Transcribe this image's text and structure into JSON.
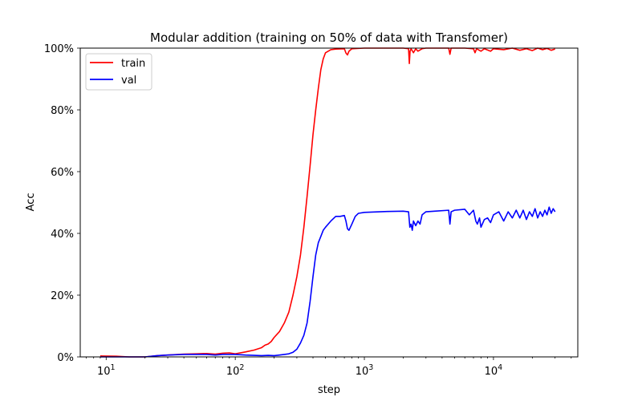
{
  "chart_data": {
    "type": "line",
    "title": "Modular addition (training on 50% of data with Transfomer)",
    "xlabel": "step",
    "ylabel": "Acc",
    "xscale": "log",
    "xlim": [
      6.3,
      45000
    ],
    "ylim": [
      0,
      1
    ],
    "x_ticks": [
      {
        "base": "10",
        "exp": "1",
        "value": 10
      },
      {
        "base": "10",
        "exp": "2",
        "value": 100
      },
      {
        "base": "10",
        "exp": "3",
        "value": 1000
      },
      {
        "base": "10",
        "exp": "4",
        "value": 10000
      }
    ],
    "y_ticks": [
      {
        "label": "0%",
        "value": 0
      },
      {
        "label": "20%",
        "value": 0.2
      },
      {
        "label": "40%",
        "value": 0.4
      },
      {
        "label": "60%",
        "value": 0.6
      },
      {
        "label": "80%",
        "value": 0.8
      },
      {
        "label": "100%",
        "value": 1.0
      }
    ],
    "grid": false,
    "legend_position": "top-left",
    "series": [
      {
        "name": "train",
        "color": "#ff0000",
        "points": [
          [
            9,
            0.003
          ],
          [
            12,
            0.002
          ],
          [
            15,
            0.0
          ],
          [
            20,
            0.0
          ],
          [
            25,
            0.004
          ],
          [
            30,
            0.006
          ],
          [
            40,
            0.009
          ],
          [
            50,
            0.01
          ],
          [
            60,
            0.011
          ],
          [
            70,
            0.009
          ],
          [
            80,
            0.012
          ],
          [
            90,
            0.013
          ],
          [
            100,
            0.01
          ],
          [
            120,
            0.016
          ],
          [
            140,
            0.022
          ],
          [
            160,
            0.03
          ],
          [
            170,
            0.038
          ],
          [
            180,
            0.042
          ],
          [
            190,
            0.05
          ],
          [
            200,
            0.063
          ],
          [
            220,
            0.082
          ],
          [
            240,
            0.11
          ],
          [
            260,
            0.145
          ],
          [
            280,
            0.2
          ],
          [
            300,
            0.26
          ],
          [
            320,
            0.33
          ],
          [
            340,
            0.42
          ],
          [
            360,
            0.52
          ],
          [
            380,
            0.62
          ],
          [
            400,
            0.72
          ],
          [
            420,
            0.8
          ],
          [
            440,
            0.87
          ],
          [
            460,
            0.93
          ],
          [
            480,
            0.965
          ],
          [
            500,
            0.985
          ],
          [
            550,
            0.995
          ],
          [
            600,
            0.997
          ],
          [
            700,
            0.998
          ],
          [
            720,
            0.984
          ],
          [
            740,
            0.978
          ],
          [
            760,
            0.99
          ],
          [
            800,
            0.998
          ],
          [
            900,
            0.999
          ],
          [
            1000,
            1.0
          ],
          [
            1500,
            1.0
          ],
          [
            2000,
            1.0
          ],
          [
            2200,
            0.998
          ],
          [
            2230,
            0.95
          ],
          [
            2260,
            0.99
          ],
          [
            2300,
            0.998
          ],
          [
            2400,
            0.985
          ],
          [
            2500,
            0.998
          ],
          [
            2600,
            0.99
          ],
          [
            2800,
            0.998
          ],
          [
            3000,
            1.0
          ],
          [
            4000,
            1.0
          ],
          [
            4500,
            1.0
          ],
          [
            4600,
            0.98
          ],
          [
            4700,
            1.0
          ],
          [
            6000,
            1.0
          ],
          [
            7000,
            0.998
          ],
          [
            7200,
            0.985
          ],
          [
            7400,
            0.998
          ],
          [
            8000,
            0.99
          ],
          [
            8500,
            0.998
          ],
          [
            9500,
            0.99
          ],
          [
            10000,
            0.998
          ],
          [
            12000,
            0.995
          ],
          [
            14000,
            1.0
          ],
          [
            16000,
            0.993
          ],
          [
            18000,
            0.998
          ],
          [
            20000,
            0.992
          ],
          [
            22000,
            1.0
          ],
          [
            24000,
            0.995
          ],
          [
            26000,
            0.999
          ],
          [
            28000,
            0.993
          ],
          [
            30000,
            0.997
          ]
        ]
      },
      {
        "name": "val",
        "color": "#0000ff",
        "points": [
          [
            9,
            0.0
          ],
          [
            12,
            0.0
          ],
          [
            15,
            0.0
          ],
          [
            20,
            0.0
          ],
          [
            25,
            0.004
          ],
          [
            30,
            0.006
          ],
          [
            40,
            0.008
          ],
          [
            50,
            0.008
          ],
          [
            60,
            0.008
          ],
          [
            70,
            0.006
          ],
          [
            80,
            0.008
          ],
          [
            90,
            0.008
          ],
          [
            100,
            0.008
          ],
          [
            120,
            0.006
          ],
          [
            140,
            0.005
          ],
          [
            160,
            0.004
          ],
          [
            180,
            0.005
          ],
          [
            200,
            0.004
          ],
          [
            220,
            0.006
          ],
          [
            240,
            0.008
          ],
          [
            260,
            0.01
          ],
          [
            280,
            0.015
          ],
          [
            300,
            0.025
          ],
          [
            320,
            0.045
          ],
          [
            340,
            0.07
          ],
          [
            360,
            0.11
          ],
          [
            380,
            0.18
          ],
          [
            400,
            0.26
          ],
          [
            420,
            0.33
          ],
          [
            440,
            0.37
          ],
          [
            460,
            0.39
          ],
          [
            480,
            0.41
          ],
          [
            500,
            0.42
          ],
          [
            550,
            0.44
          ],
          [
            600,
            0.455
          ],
          [
            650,
            0.455
          ],
          [
            700,
            0.458
          ],
          [
            720,
            0.44
          ],
          [
            740,
            0.415
          ],
          [
            760,
            0.41
          ],
          [
            800,
            0.43
          ],
          [
            850,
            0.455
          ],
          [
            900,
            0.465
          ],
          [
            1000,
            0.468
          ],
          [
            1500,
            0.471
          ],
          [
            2000,
            0.472
          ],
          [
            2200,
            0.47
          ],
          [
            2250,
            0.42
          ],
          [
            2300,
            0.43
          ],
          [
            2350,
            0.41
          ],
          [
            2400,
            0.44
          ],
          [
            2500,
            0.425
          ],
          [
            2600,
            0.44
          ],
          [
            2700,
            0.43
          ],
          [
            2800,
            0.46
          ],
          [
            3000,
            0.47
          ],
          [
            3500,
            0.472
          ],
          [
            4500,
            0.475
          ],
          [
            4600,
            0.43
          ],
          [
            4700,
            0.47
          ],
          [
            5000,
            0.475
          ],
          [
            6000,
            0.478
          ],
          [
            6500,
            0.46
          ],
          [
            7000,
            0.475
          ],
          [
            7300,
            0.44
          ],
          [
            7500,
            0.43
          ],
          [
            7800,
            0.45
          ],
          [
            8000,
            0.42
          ],
          [
            8500,
            0.445
          ],
          [
            9000,
            0.45
          ],
          [
            9500,
            0.435
          ],
          [
            10000,
            0.46
          ],
          [
            11000,
            0.47
          ],
          [
            12000,
            0.44
          ],
          [
            13000,
            0.47
          ],
          [
            14000,
            0.45
          ],
          [
            15000,
            0.475
          ],
          [
            16000,
            0.45
          ],
          [
            17000,
            0.475
          ],
          [
            18000,
            0.445
          ],
          [
            19000,
            0.47
          ],
          [
            20000,
            0.455
          ],
          [
            21000,
            0.48
          ],
          [
            22000,
            0.45
          ],
          [
            23000,
            0.47
          ],
          [
            24000,
            0.455
          ],
          [
            25000,
            0.475
          ],
          [
            26000,
            0.46
          ],
          [
            27000,
            0.485
          ],
          [
            28000,
            0.465
          ],
          [
            29000,
            0.48
          ],
          [
            30000,
            0.47
          ]
        ]
      }
    ]
  }
}
